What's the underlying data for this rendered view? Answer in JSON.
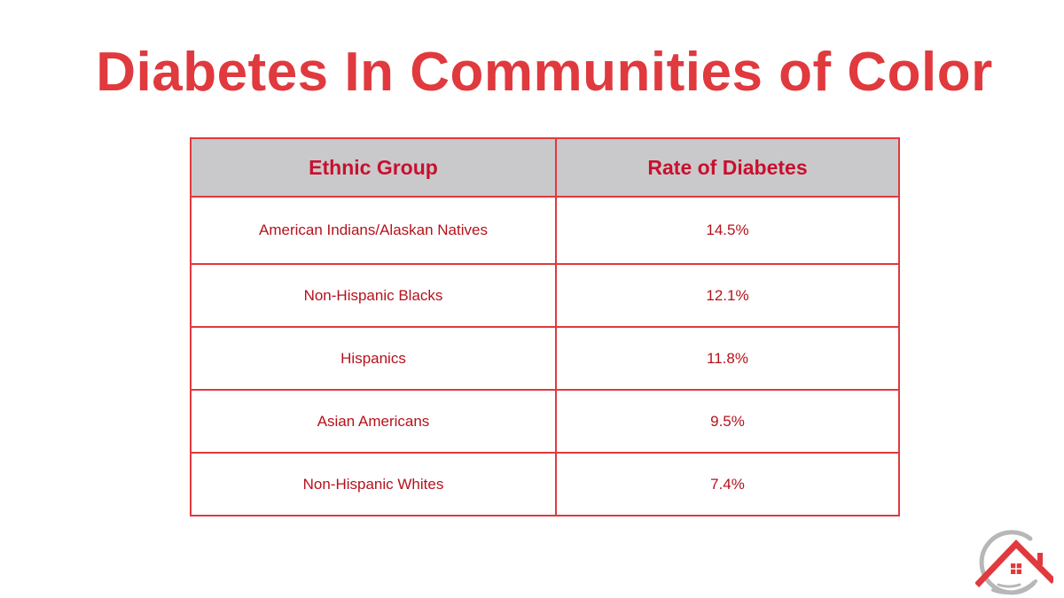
{
  "slide": {
    "title": "Diabetes In Communities of Color"
  },
  "table": {
    "headers": [
      "Ethnic Group",
      "Rate of Diabetes"
    ],
    "rows": [
      {
        "group": "American Indians/Alaskan Natives",
        "rate": "14.5%"
      },
      {
        "group": "Non-Hispanic Blacks",
        "rate": "12.1%"
      },
      {
        "group": "Hispanics",
        "rate": "11.8%"
      },
      {
        "group": "Asian Americans",
        "rate": "9.5%"
      },
      {
        "group": "Non-Hispanic Whites",
        "rate": "7.4%"
      }
    ]
  },
  "logo": {
    "icon": "house-in-hand-icon"
  },
  "colors": {
    "accent": "#e0393e",
    "text_dark_red": "#b5121b",
    "header_fill": "#c9c9cb",
    "logo_gray": "#b7b7b7"
  }
}
